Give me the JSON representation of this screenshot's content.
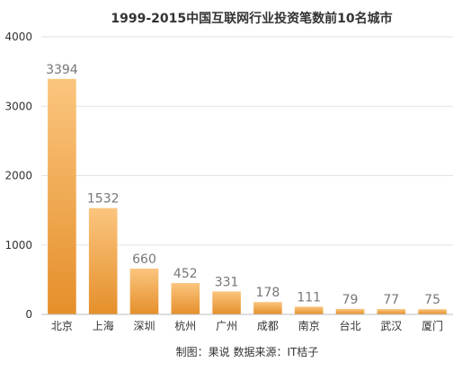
{
  "chart_data": {
    "type": "bar",
    "title": "1999-2015中国互联网行业投资笔数前10名城市",
    "source": "制图：果说  数据来源：IT桔子",
    "categories": [
      "北京",
      "上海",
      "深圳",
      "杭州",
      "广州",
      "成都",
      "南京",
      "台北",
      "武汉",
      "厦门"
    ],
    "values": [
      3394,
      1532,
      660,
      452,
      331,
      178,
      111,
      79,
      77,
      75
    ],
    "value_labels": [
      "3394",
      "1532",
      "660",
      "452",
      "331",
      "178",
      "111",
      "79",
      "77",
      "75"
    ],
    "y_ticks": [
      0,
      1000,
      2000,
      3000,
      4000
    ],
    "y_tick_labels": [
      "0",
      "1000",
      "2000",
      "3000",
      "4000"
    ],
    "ylim": [
      0,
      4000
    ],
    "grid": true,
    "colors": {
      "bar_top": "#fbc57e",
      "bar_bottom": "#e58f2a",
      "grid": "#e2e2e2",
      "axis": "#bdbdbd",
      "value_label": "#777777",
      "tick_label": "#333333",
      "title": "#333333"
    }
  }
}
